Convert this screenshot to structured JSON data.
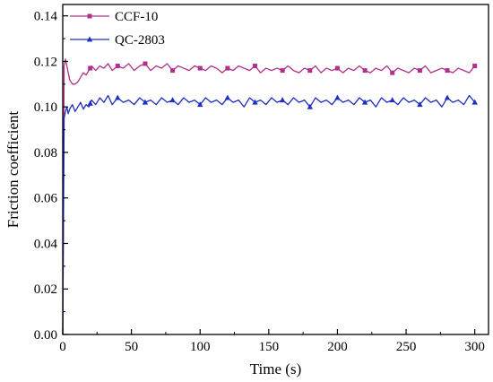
{
  "chart_data": {
    "type": "line",
    "title": "",
    "xlabel": "Time (s)",
    "ylabel": "Friction coefficient",
    "xlim": [
      0,
      310
    ],
    "ylim": [
      0,
      0.145
    ],
    "x_ticks": [
      0,
      50,
      100,
      150,
      200,
      250,
      300
    ],
    "y_ticks": [
      0.0,
      0.02,
      0.04,
      0.06,
      0.08,
      0.1,
      0.12,
      0.14
    ],
    "x_tick_labels": [
      "0",
      "50",
      "100",
      "150",
      "200",
      "250",
      "300"
    ],
    "y_tick_labels": [
      "0.00",
      "0.02",
      "0.04",
      "0.06",
      "0.08",
      "0.10",
      "0.12",
      "0.14"
    ],
    "grid": false,
    "legend_position": "top-left",
    "series": [
      {
        "name": "CCF-10",
        "color": "#b0308c",
        "marker": "square",
        "marker_x": [
          0,
          20,
          40,
          60,
          80,
          100,
          120,
          140,
          160,
          180,
          200,
          220,
          240,
          260,
          280,
          300
        ],
        "x": [
          0,
          1,
          2,
          3,
          4,
          5,
          7,
          9,
          11,
          13,
          15,
          17,
          19,
          21,
          24,
          27,
          30,
          33,
          36,
          40,
          44,
          48,
          52,
          56,
          60,
          64,
          68,
          72,
          76,
          80,
          84,
          88,
          92,
          96,
          100,
          104,
          108,
          112,
          116,
          120,
          124,
          128,
          132,
          136,
          140,
          144,
          148,
          152,
          156,
          160,
          164,
          168,
          172,
          176,
          180,
          184,
          188,
          192,
          196,
          200,
          204,
          208,
          212,
          216,
          220,
          224,
          228,
          232,
          236,
          240,
          244,
          248,
          252,
          256,
          260,
          264,
          268,
          272,
          276,
          280,
          284,
          288,
          292,
          296,
          300
        ],
        "y": [
          0.0,
          0.118,
          0.121,
          0.118,
          0.115,
          0.112,
          0.11,
          0.11,
          0.111,
          0.113,
          0.115,
          0.114,
          0.116,
          0.118,
          0.116,
          0.118,
          0.117,
          0.119,
          0.116,
          0.118,
          0.117,
          0.119,
          0.116,
          0.118,
          0.119,
          0.116,
          0.118,
          0.117,
          0.119,
          0.116,
          0.118,
          0.117,
          0.116,
          0.118,
          0.117,
          0.116,
          0.118,
          0.117,
          0.115,
          0.117,
          0.116,
          0.118,
          0.117,
          0.116,
          0.118,
          0.115,
          0.117,
          0.116,
          0.117,
          0.116,
          0.118,
          0.116,
          0.115,
          0.117,
          0.116,
          0.118,
          0.115,
          0.117,
          0.116,
          0.117,
          0.115,
          0.117,
          0.116,
          0.118,
          0.116,
          0.115,
          0.117,
          0.116,
          0.118,
          0.115,
          0.117,
          0.116,
          0.115,
          0.117,
          0.116,
          0.118,
          0.115,
          0.116,
          0.117,
          0.116,
          0.115,
          0.117,
          0.116,
          0.115,
          0.118
        ]
      },
      {
        "name": "QC-2803",
        "color": "#1f2fbf",
        "marker": "triangle",
        "marker_x": [
          0,
          20,
          40,
          60,
          80,
          100,
          120,
          140,
          160,
          180,
          200,
          220,
          240,
          260,
          280,
          300
        ],
        "x": [
          0,
          1,
          2,
          3,
          4,
          5,
          7,
          9,
          11,
          13,
          15,
          17,
          19,
          21,
          24,
          27,
          30,
          33,
          36,
          40,
          44,
          48,
          52,
          56,
          60,
          64,
          68,
          72,
          76,
          80,
          84,
          88,
          92,
          96,
          100,
          104,
          108,
          112,
          116,
          120,
          124,
          128,
          132,
          136,
          140,
          144,
          148,
          152,
          156,
          160,
          164,
          168,
          172,
          176,
          180,
          184,
          188,
          192,
          196,
          200,
          204,
          208,
          212,
          216,
          220,
          224,
          228,
          232,
          236,
          240,
          244,
          248,
          252,
          256,
          260,
          264,
          268,
          272,
          276,
          280,
          284,
          288,
          292,
          296,
          300
        ],
        "y": [
          0.0,
          0.095,
          0.098,
          0.1,
          0.097,
          0.099,
          0.101,
          0.098,
          0.1,
          0.102,
          0.099,
          0.101,
          0.1,
          0.103,
          0.101,
          0.104,
          0.102,
          0.105,
          0.101,
          0.104,
          0.102,
          0.103,
          0.101,
          0.104,
          0.102,
          0.103,
          0.101,
          0.104,
          0.102,
          0.103,
          0.101,
          0.104,
          0.102,
          0.103,
          0.101,
          0.104,
          0.102,
          0.103,
          0.101,
          0.104,
          0.102,
          0.103,
          0.1,
          0.104,
          0.102,
          0.103,
          0.101,
          0.104,
          0.102,
          0.103,
          0.101,
          0.104,
          0.102,
          0.103,
          0.1,
          0.104,
          0.102,
          0.103,
          0.101,
          0.104,
          0.102,
          0.103,
          0.101,
          0.104,
          0.102,
          0.103,
          0.1,
          0.104,
          0.102,
          0.103,
          0.101,
          0.104,
          0.102,
          0.103,
          0.101,
          0.104,
          0.102,
          0.103,
          0.1,
          0.104,
          0.102,
          0.103,
          0.101,
          0.105,
          0.102
        ]
      }
    ]
  }
}
